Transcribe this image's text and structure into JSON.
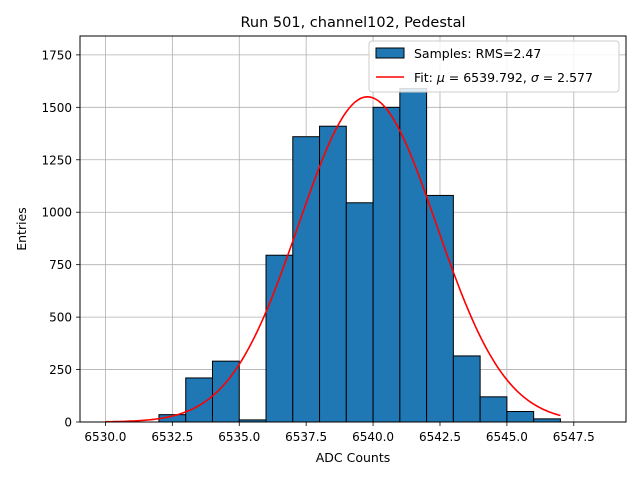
{
  "chart_data": {
    "type": "bar",
    "title": "Run 501, channel102, Pedestal",
    "xlabel": "ADC Counts",
    "ylabel": "Entries",
    "xlim": [
      6529.05,
      6549.45
    ],
    "ylim": [
      0,
      1840
    ],
    "xticks": [
      6530.0,
      6532.5,
      6535.0,
      6537.5,
      6540.0,
      6542.5,
      6545.0,
      6547.5
    ],
    "xtick_labels": [
      "6530.0",
      "6532.5",
      "6535.0",
      "6537.5",
      "6540.0",
      "6542.5",
      "6545.0",
      "6547.5"
    ],
    "yticks": [
      0,
      250,
      500,
      750,
      1000,
      1250,
      1500,
      1750
    ],
    "ytick_labels": [
      "0",
      "250",
      "500",
      "750",
      "1000",
      "1250",
      "1500",
      "1750"
    ],
    "grid": true,
    "legend_position": "top-right",
    "bar_color": "#1f77b4",
    "fit_color": "#ff0000",
    "series": [
      {
        "name": "Samples: RMS=2.47",
        "kind": "histogram",
        "bin_edges": [
          6532,
          6533,
          6534,
          6535,
          6536,
          6537,
          6538,
          6539,
          6540,
          6541,
          6542,
          6543,
          6544,
          6545,
          6546,
          6547
        ],
        "values": [
          35,
          210,
          290,
          10,
          795,
          1360,
          1410,
          1045,
          1500,
          1590,
          1080,
          315,
          120,
          50,
          15
        ]
      },
      {
        "name_parts": [
          "Fit: ",
          "μ",
          " = 6539.792, ",
          "σ",
          " = 2.577"
        ],
        "kind": "gaussian_fit",
        "mu": 6539.792,
        "sigma": 2.577,
        "amplitude": 1550,
        "x_range": [
          6530,
          6547
        ]
      }
    ]
  }
}
